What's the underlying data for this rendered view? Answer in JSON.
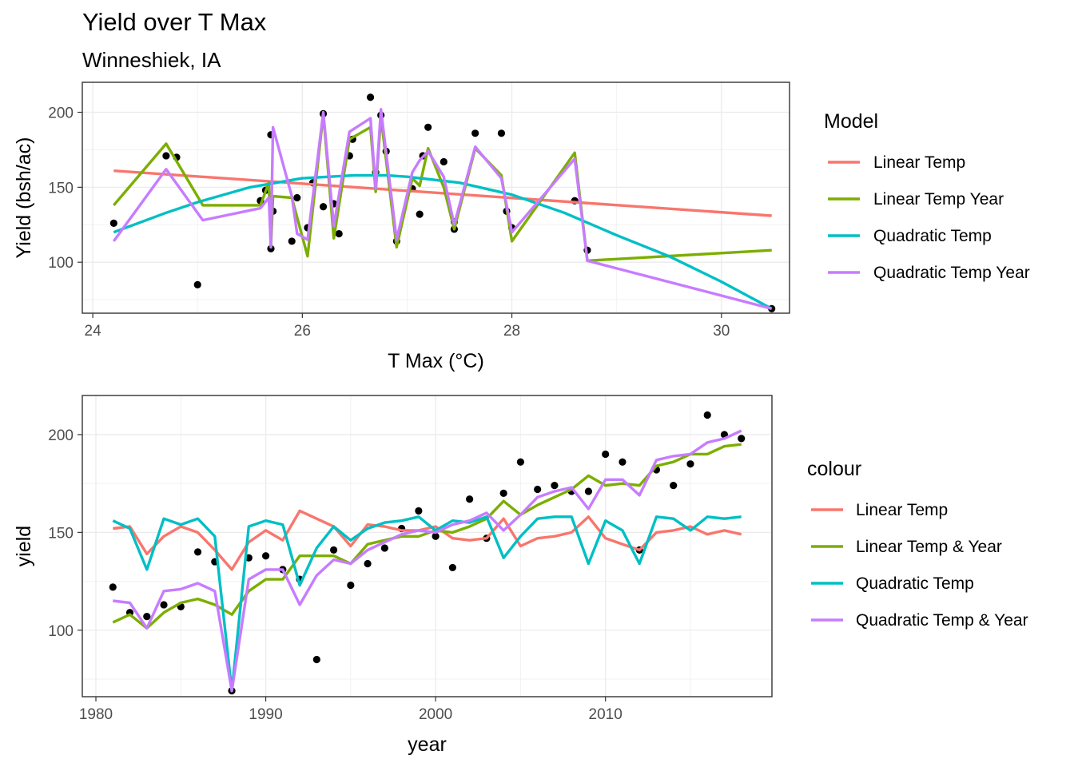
{
  "title": "Yield over T Max",
  "subtitle": "Winneshiek, IA",
  "chart_data": [
    {
      "type": "line",
      "xlabel": "T Max (°C)",
      "ylabel": "Yield (bsh/ac)",
      "xlim": [
        23.9,
        30.65
      ],
      "ylim": [
        66,
        220
      ],
      "xticks": [
        24,
        26,
        28,
        30
      ],
      "yticks": [
        100,
        150,
        200
      ],
      "grid": true,
      "legend": {
        "title": "Model",
        "position": "right"
      },
      "points": [
        [
          24.2,
          126
        ],
        [
          24.7,
          171
        ],
        [
          24.8,
          170
        ],
        [
          25.0,
          85
        ],
        [
          25.6,
          141
        ],
        [
          25.65,
          148
        ],
        [
          25.7,
          109
        ],
        [
          25.7,
          185
        ],
        [
          25.72,
          134
        ],
        [
          25.9,
          114
        ],
        [
          25.95,
          143
        ],
        [
          26.05,
          123
        ],
        [
          26.1,
          153
        ],
        [
          26.2,
          199
        ],
        [
          26.2,
          137
        ],
        [
          26.3,
          139
        ],
        [
          26.35,
          119
        ],
        [
          26.45,
          171
        ],
        [
          26.48,
          182
        ],
        [
          26.65,
          210
        ],
        [
          26.7,
          160
        ],
        [
          26.75,
          198
        ],
        [
          26.8,
          174
        ],
        [
          26.9,
          114
        ],
        [
          27.05,
          149
        ],
        [
          27.12,
          132
        ],
        [
          27.15,
          171
        ],
        [
          27.2,
          190
        ],
        [
          27.35,
          167
        ],
        [
          27.45,
          122
        ],
        [
          27.45,
          127
        ],
        [
          27.65,
          186
        ],
        [
          27.9,
          186
        ],
        [
          27.95,
          134
        ],
        [
          28.0,
          123
        ],
        [
          28.6,
          141
        ],
        [
          28.72,
          108
        ],
        [
          30.48,
          69
        ]
      ],
      "series": [
        {
          "name": "Linear Temp",
          "color": "#F8766D",
          "x": [
            24.2,
            30.48
          ],
          "y": [
            161,
            131
          ]
        },
        {
          "name": "Linear Temp Year",
          "color": "#7CAE00",
          "x": [
            24.2,
            24.7,
            25.05,
            25.6,
            25.68,
            25.7,
            25.72,
            25.9,
            26.05,
            26.2,
            26.3,
            26.45,
            26.65,
            26.7,
            26.75,
            26.9,
            27.05,
            27.12,
            27.2,
            27.35,
            27.45,
            27.65,
            27.9,
            28.0,
            28.6,
            28.72,
            30.48
          ],
          "y": [
            138,
            179,
            138,
            138,
            153,
            110,
            144,
            143,
            104,
            199,
            116,
            182,
            190,
            147,
            197,
            110,
            156,
            151,
            176,
            150,
            122,
            176,
            158,
            114,
            173,
            101,
            108
          ]
        },
        {
          "name": "Quadratic Temp",
          "color": "#00BFC4",
          "x": [
            24.2,
            24.7,
            25.0,
            25.5,
            26.0,
            26.5,
            26.8,
            27.0,
            27.5,
            28.0,
            28.5,
            29.0,
            29.5,
            30.0,
            30.48
          ],
          "y": [
            120,
            133,
            140,
            150,
            156,
            158,
            158,
            157,
            153,
            145,
            133,
            118,
            104,
            87,
            69
          ]
        },
        {
          "name": "Quadratic Temp Year",
          "color": "#C77CFF",
          "x": [
            24.2,
            24.7,
            25.05,
            25.6,
            25.68,
            25.7,
            25.72,
            25.9,
            25.95,
            26.05,
            26.2,
            26.3,
            26.45,
            26.65,
            26.7,
            26.75,
            26.9,
            27.05,
            27.12,
            27.2,
            27.35,
            27.45,
            27.65,
            27.9,
            28.0,
            28.6,
            28.72,
            30.48
          ],
          "y": [
            114,
            162,
            128,
            136,
            143,
            110,
            190,
            144,
            119,
            115,
            200,
            124,
            187,
            196,
            149,
            202,
            115,
            160,
            168,
            174,
            157,
            125,
            177,
            156,
            120,
            169,
            101,
            69
          ]
        }
      ]
    },
    {
      "type": "line",
      "xlabel": "year",
      "ylabel": "yield",
      "xlim": [
        1979.2,
        2019.8
      ],
      "ylim": [
        66,
        220
      ],
      "xticks": [
        1980,
        1990,
        2000,
        2010
      ],
      "yticks": [
        100,
        150,
        200
      ],
      "grid": true,
      "legend": {
        "title": "colour",
        "position": "right"
      },
      "points": [
        [
          1981,
          122
        ],
        [
          1982,
          109
        ],
        [
          1983,
          107
        ],
        [
          1984,
          113
        ],
        [
          1985,
          112
        ],
        [
          1986,
          140
        ],
        [
          1987,
          135
        ],
        [
          1988,
          69
        ],
        [
          1989,
          137
        ],
        [
          1990,
          138
        ],
        [
          1991,
          131
        ],
        [
          1992,
          126
        ],
        [
          1993,
          85
        ],
        [
          1994,
          141
        ],
        [
          1995,
          123
        ],
        [
          1996,
          134
        ],
        [
          1997,
          142
        ],
        [
          1998,
          152
        ],
        [
          1999,
          161
        ],
        [
          2000,
          148
        ],
        [
          2001,
          132
        ],
        [
          2002,
          167
        ],
        [
          2003,
          147
        ],
        [
          2004,
          170
        ],
        [
          2005,
          186
        ],
        [
          2006,
          172
        ],
        [
          2007,
          174
        ],
        [
          2008,
          171
        ],
        [
          2009,
          171
        ],
        [
          2010,
          190
        ],
        [
          2011,
          186
        ],
        [
          2012,
          141
        ],
        [
          2013,
          182
        ],
        [
          2014,
          174
        ],
        [
          2015,
          185
        ],
        [
          2016,
          210
        ],
        [
          2017,
          200
        ],
        [
          2018,
          198
        ]
      ],
      "series": [
        {
          "name": "Linear Temp",
          "color": "#F8766D",
          "x": [
            1981,
            1982,
            1983,
            1984,
            1985,
            1986,
            1987,
            1988,
            1989,
            1990,
            1991,
            1992,
            1993,
            1994,
            1995,
            1996,
            1997,
            1998,
            1999,
            2000,
            2001,
            2002,
            2003,
            2004,
            2005,
            2006,
            2007,
            2008,
            2009,
            2010,
            2011,
            2012,
            2013,
            2014,
            2015,
            2016,
            2017,
            2018
          ],
          "y": [
            152,
            153,
            139,
            148,
            153,
            150,
            141,
            131,
            145,
            151,
            146,
            161,
            157,
            153,
            143,
            154,
            153,
            151,
            151,
            153,
            147,
            146,
            147,
            157,
            143,
            147,
            148,
            150,
            158,
            147,
            144,
            141,
            150,
            151,
            153,
            149,
            151,
            149
          ]
        },
        {
          "name": "Linear Temp & Year",
          "color": "#7CAE00",
          "x": [
            1981,
            1982,
            1983,
            1984,
            1985,
            1986,
            1987,
            1988,
            1989,
            1990,
            1991,
            1992,
            1993,
            1994,
            1995,
            1996,
            1997,
            1998,
            1999,
            2000,
            2001,
            2002,
            2003,
            2004,
            2005,
            2006,
            2007,
            2008,
            2009,
            2010,
            2011,
            2012,
            2013,
            2014,
            2015,
            2016,
            2017,
            2018
          ],
          "y": [
            104,
            108,
            101,
            109,
            114,
            116,
            113,
            108,
            120,
            126,
            126,
            138,
            138,
            138,
            134,
            144,
            146,
            148,
            148,
            151,
            150,
            153,
            157,
            166,
            159,
            164,
            168,
            172,
            179,
            174,
            175,
            174,
            184,
            186,
            190,
            190,
            194,
            195
          ]
        },
        {
          "name": "Quadratic Temp",
          "color": "#00BFC4",
          "x": [
            1981,
            1982,
            1983,
            1984,
            1985,
            1986,
            1987,
            1988,
            1989,
            1990,
            1991,
            1992,
            1993,
            1994,
            1995,
            1996,
            1997,
            1998,
            1999,
            2000,
            2001,
            2002,
            2003,
            2004,
            2005,
            2006,
            2007,
            2008,
            2009,
            2010,
            2011,
            2012,
            2013,
            2014,
            2015,
            2016,
            2017,
            2018
          ],
          "y": [
            156,
            152,
            131,
            157,
            154,
            157,
            148,
            69,
            153,
            156,
            154,
            123,
            142,
            153,
            146,
            152,
            155,
            156,
            158,
            151,
            156,
            155,
            158,
            137,
            148,
            157,
            158,
            158,
            134,
            156,
            151,
            134,
            158,
            157,
            151,
            158,
            157,
            158
          ]
        },
        {
          "name": "Quadratic Temp & Year",
          "color": "#C77CFF",
          "x": [
            1981,
            1982,
            1983,
            1984,
            1985,
            1986,
            1987,
            1988,
            1989,
            1990,
            1991,
            1992,
            1993,
            1994,
            1995,
            1996,
            1997,
            1998,
            1999,
            2000,
            2001,
            2002,
            2003,
            2004,
            2005,
            2006,
            2007,
            2008,
            2009,
            2010,
            2011,
            2012,
            2013,
            2014,
            2015,
            2016,
            2017,
            2018
          ],
          "y": [
            115,
            114,
            101,
            120,
            121,
            124,
            120,
            69,
            126,
            131,
            131,
            113,
            128,
            136,
            134,
            141,
            145,
            149,
            151,
            150,
            154,
            156,
            160,
            151,
            159,
            168,
            171,
            173,
            162,
            177,
            177,
            169,
            187,
            189,
            190,
            196,
            198,
            202
          ]
        }
      ]
    }
  ]
}
